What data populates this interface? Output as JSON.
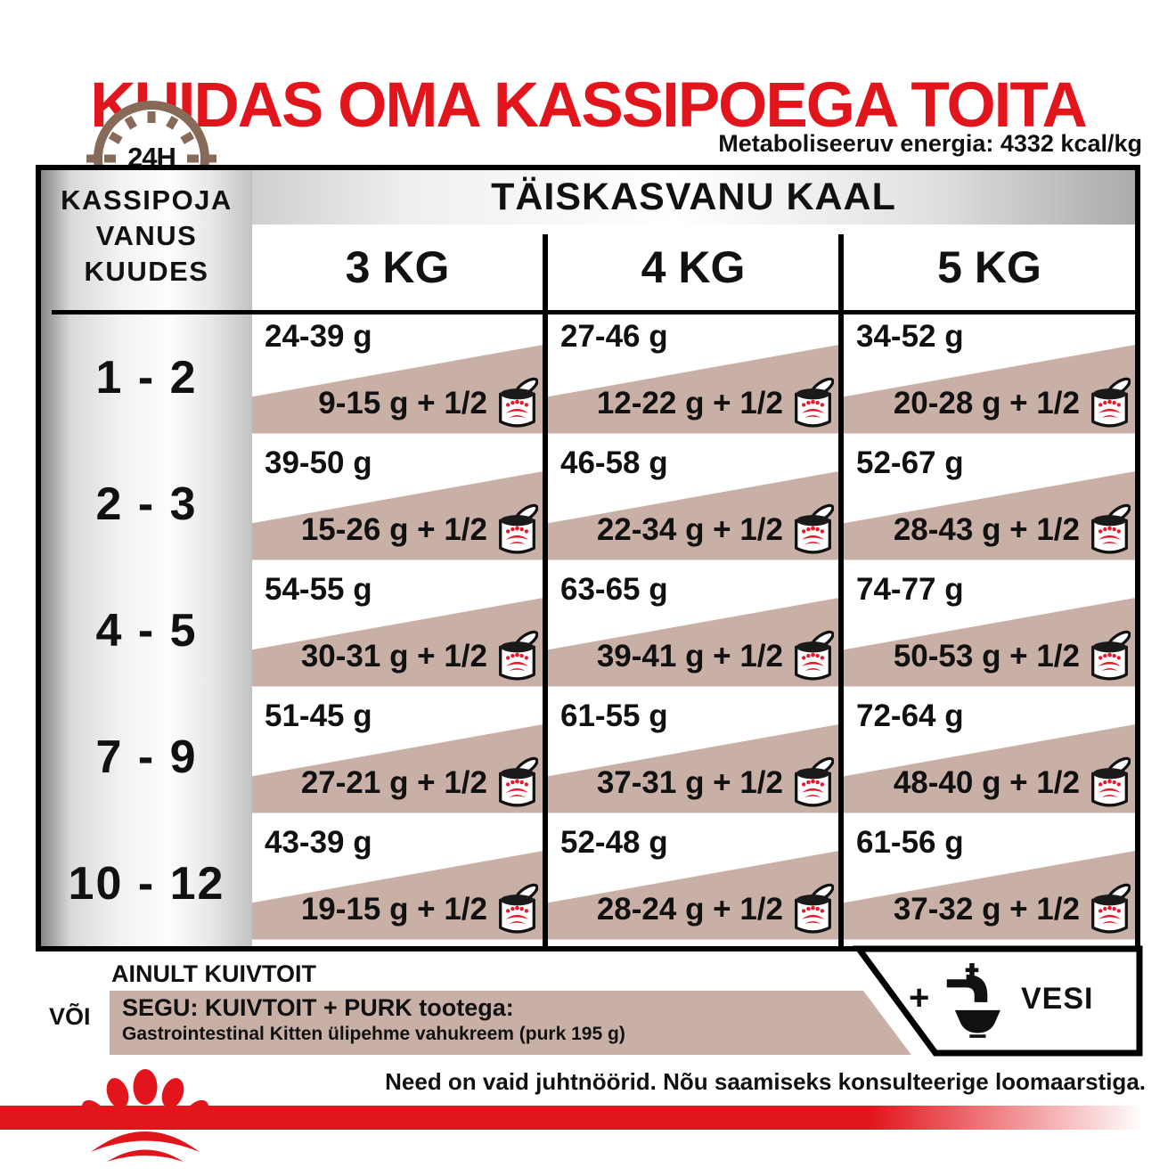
{
  "title": "KUIDAS OMA KASSIPOEGA TOITA",
  "energy_note": "Metaboliseeruv energia: 4332 kcal/kg",
  "clock_label": "24H",
  "table": {
    "row_header_lines": [
      "KASSIPOJA",
      "VANUS",
      "KUUDES"
    ],
    "col_group_title": "TÄISKASVANU KAAL",
    "columns": [
      "3 KG",
      "4 KG",
      "5 KG"
    ],
    "rows": [
      {
        "age": "1 - 2",
        "cells": [
          {
            "dry": "24-39 g",
            "mix": "9-15 g + 1/2"
          },
          {
            "dry": "27-46 g",
            "mix": "12-22 g + 1/2"
          },
          {
            "dry": "34-52 g",
            "mix": "20-28 g + 1/2"
          }
        ]
      },
      {
        "age": "2 - 3",
        "cells": [
          {
            "dry": "39-50 g",
            "mix": "15-26 g + 1/2"
          },
          {
            "dry": "46-58 g",
            "mix": "22-34 g + 1/2"
          },
          {
            "dry": "52-67 g",
            "mix": "28-43 g + 1/2"
          }
        ]
      },
      {
        "age": "4 - 5",
        "cells": [
          {
            "dry": "54-55 g",
            "mix": "30-31 g + 1/2"
          },
          {
            "dry": "63-65 g",
            "mix": "39-41 g + 1/2"
          },
          {
            "dry": "74-77 g",
            "mix": "50-53 g + 1/2"
          }
        ]
      },
      {
        "age": "7 - 9",
        "cells": [
          {
            "dry": "51-45 g",
            "mix": "27-21 g + 1/2"
          },
          {
            "dry": "61-55 g",
            "mix": "37-31 g + 1/2"
          },
          {
            "dry": "72-64 g",
            "mix": "48-40 g + 1/2"
          }
        ]
      },
      {
        "age": "10 - 12",
        "cells": [
          {
            "dry": "43-39 g",
            "mix": "19-15 g + 1/2"
          },
          {
            "dry": "52-48 g",
            "mix": "28-24 g + 1/2"
          },
          {
            "dry": "61-56 g",
            "mix": "37-32 g + 1/2"
          }
        ]
      }
    ]
  },
  "legend": {
    "dry_only": "AINULT KUIVTOIT",
    "or": "VÕI",
    "mix_title": "SEGU: KUIVTOIT + PURK tootega:",
    "mix_subtitle": "Gastrointestinal Kitten ülipehme vahukreem (purk 195 g)",
    "water_plus": "+",
    "water_label": "VESI"
  },
  "footer": {
    "disclaimer": "Need on vaid juhtnöörid. Nõu saamiseks konsulteerige loomaarstiga."
  },
  "icons": {
    "clock": "24h-clock-icon",
    "can": "wet-food-can-icon",
    "tap": "water-tap-icon",
    "paw": "royal-canin-paw-logo"
  },
  "colors": {
    "accent_red": "#e2151c",
    "crown_red": "#e8192c",
    "beige": "#c8b0a6",
    "clock_brown": "#876a58"
  }
}
